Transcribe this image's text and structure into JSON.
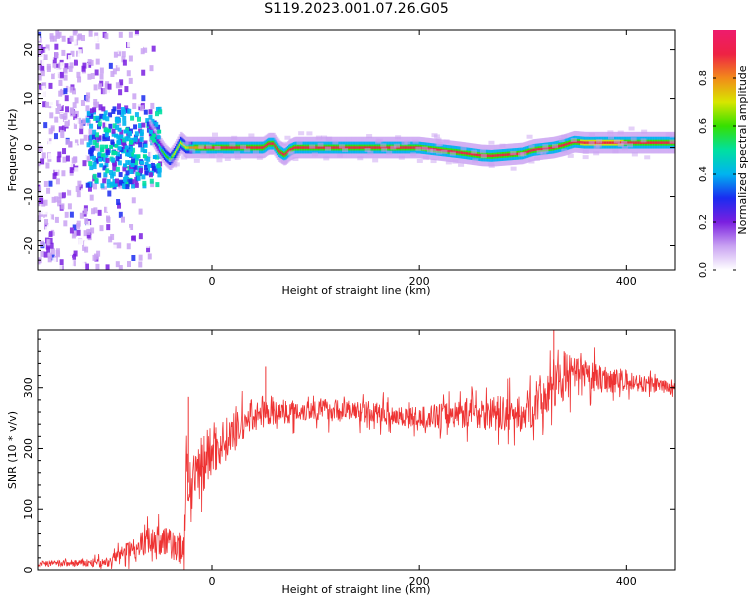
{
  "figure": {
    "title": "S119.2023.001.07.26.G05"
  },
  "chart_data": [
    {
      "type": "heatmap",
      "xlabel": "Height of straight line (km)",
      "ylabel": "Frequency (Hz)",
      "xlim": [
        -168,
        447
      ],
      "ylim": [
        -25,
        24
      ],
      "xticks": [
        0,
        200,
        400
      ],
      "yticks": [
        -20,
        -10,
        0,
        10,
        20
      ],
      "grid": false,
      "colorbar": {
        "label": "Normalized spectral amplitude",
        "range": [
          0,
          1
        ],
        "ticks": [
          0.0,
          0.2,
          0.4,
          0.6,
          0.8
        ],
        "colormap": [
          "#ffffff",
          "#c9a2f2",
          "#7a1fe0",
          "#1a2cf0",
          "#00b4f0",
          "#00e0a0",
          "#36e000",
          "#d8e600",
          "#f28a1a",
          "#ee2244",
          "#ee1b6d"
        ]
      },
      "ridge": {
        "x": [
          -60,
          -50,
          -45,
          -40,
          -35,
          -30,
          -25,
          0,
          50,
          55,
          60,
          65,
          70,
          75,
          80,
          100,
          200,
          240,
          260,
          270,
          300,
          310,
          330,
          340,
          350,
          360,
          447
        ],
        "y": [
          3.5,
          0,
          -1.5,
          -2.5,
          -1,
          1,
          0,
          0,
          0,
          0.8,
          0.8,
          -0.8,
          -1.5,
          -0.5,
          0,
          0,
          0,
          -1,
          -1.6,
          -1.7,
          -1.2,
          -0.5,
          0,
          0.5,
          1.2,
          1.0,
          1.0
        ]
      },
      "amplitude_profile": {
        "x": [
          -60,
          -45,
          -30,
          0,
          100,
          200,
          300,
          340,
          360,
          447
        ],
        "y": [
          0.35,
          0.6,
          0.7,
          0.9,
          0.92,
          0.9,
          0.88,
          0.85,
          0.95,
          0.9
        ]
      },
      "noise_region": {
        "x": [
          -168,
          -55
        ],
        "y_span": [
          -25,
          24
        ]
      }
    },
    {
      "type": "line",
      "xlabel": "Height of straight line (km)",
      "ylabel": "SNR (10 * v/v)",
      "xlim": [
        -168,
        447
      ],
      "ylim": [
        0,
        395
      ],
      "xticks": [
        0,
        200,
        400
      ],
      "yticks": [
        0,
        100,
        200,
        300
      ],
      "grid": false,
      "color": "#ee3333",
      "envelope": {
        "x": [
          -168,
          -100,
          -90,
          -60,
          -40,
          -28,
          -25,
          -20,
          -10,
          20,
          40,
          100,
          150,
          200,
          250,
          300,
          340,
          380,
          447
        ],
        "y": [
          10,
          12,
          25,
          50,
          45,
          30,
          160,
          120,
          180,
          225,
          255,
          265,
          260,
          250,
          260,
          255,
          320,
          315,
          300
        ]
      },
      "noise_amplitude": {
        "x": [
          -168,
          -100,
          -60,
          -30,
          -20,
          20,
          50,
          200,
          260,
          300,
          330,
          360,
          447
        ],
        "y": [
          6,
          10,
          30,
          35,
          70,
          40,
          25,
          22,
          35,
          40,
          55,
          35,
          10
        ]
      },
      "spikes": {
        "x": [
          -23,
          52,
          330,
          340
        ],
        "y": [
          285,
          335,
          395,
          360
        ]
      }
    }
  ]
}
